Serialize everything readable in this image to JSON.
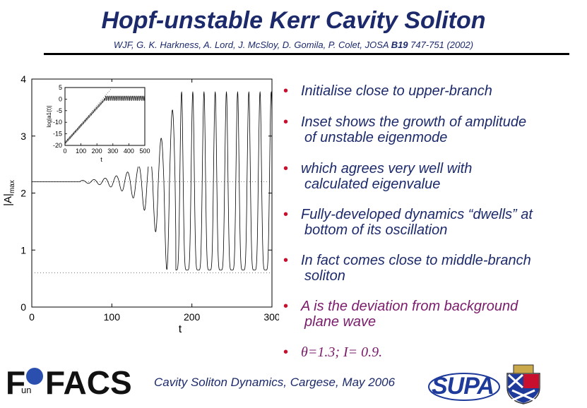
{
  "slide": {
    "title": "Hopf-unstable Kerr Cavity Soliton",
    "authors_prefix": "WJF, G. K. Harkness, A. Lord, J. McSloy, D. Gomila, P. Colet, JOSA ",
    "authors_vol": "B19",
    "authors_suffix": "  747-751 (2002)",
    "bullets": [
      {
        "line1": "Initialise close to upper-branch",
        "line2": ""
      },
      {
        "line1": "Inset shows the growth of amplitude",
        "line2": "of unstable eigenmode"
      },
      {
        "line1": "which agrees very well with",
        "line2": "calculated eigenvalue"
      },
      {
        "line1": "Fully-developed dynamics “dwells” at",
        "line2": "bottom of its oscillation"
      },
      {
        "line1": "In fact comes close to middle-branch",
        "line2": "soliton"
      },
      {
        "line1": "A is the deviation from background",
        "line2": "plane wave"
      }
    ],
    "bullet_formula": "θ=1.3; I= 0.9.",
    "bullet_dot": "•",
    "footer": "Cavity Soliton Dynamics, Cargese, May 2006",
    "logo_left": {
      "f": "F",
      "un": "un",
      "facs": "FACS"
    },
    "logo_right": "SUPA",
    "colors": {
      "title": "#1c2a6b",
      "bullet_dot": "#c8102e",
      "purple": "#7a1c6b",
      "supa": "#1e3a9a"
    }
  },
  "chart_data": [
    {
      "type": "line",
      "title": "",
      "xlabel": "t",
      "ylabel": "|A|max",
      "xlim": [
        0,
        300
      ],
      "ylim": [
        0,
        4
      ],
      "xticks": [
        0,
        100,
        200,
        300
      ],
      "yticks": [
        0,
        1,
        2,
        3,
        4
      ],
      "reference_lines_y": [
        2.2,
        0.6
      ],
      "series": [
        {
          "initial_level": 2.2,
          "onset_t": 60,
          "growth_end_t": 180,
          "period": 14,
          "peak_max": 3.85,
          "trough_min": 0.5
        }
      ]
    },
    {
      "type": "line",
      "title": "",
      "xlabel": "t",
      "ylabel": "log|a1(t)|",
      "xlim": [
        0,
        500
      ],
      "ylim": [
        -20,
        5
      ],
      "xticks": [
        0,
        100,
        200,
        300,
        400,
        500
      ],
      "yticks": [
        5,
        0,
        -5,
        -10,
        -15,
        -20
      ],
      "series": [
        {
          "growth_start": [
            0,
            -19
          ],
          "growth_end": [
            250,
            0
          ],
          "saturation_level": 0.5
        }
      ]
    }
  ]
}
